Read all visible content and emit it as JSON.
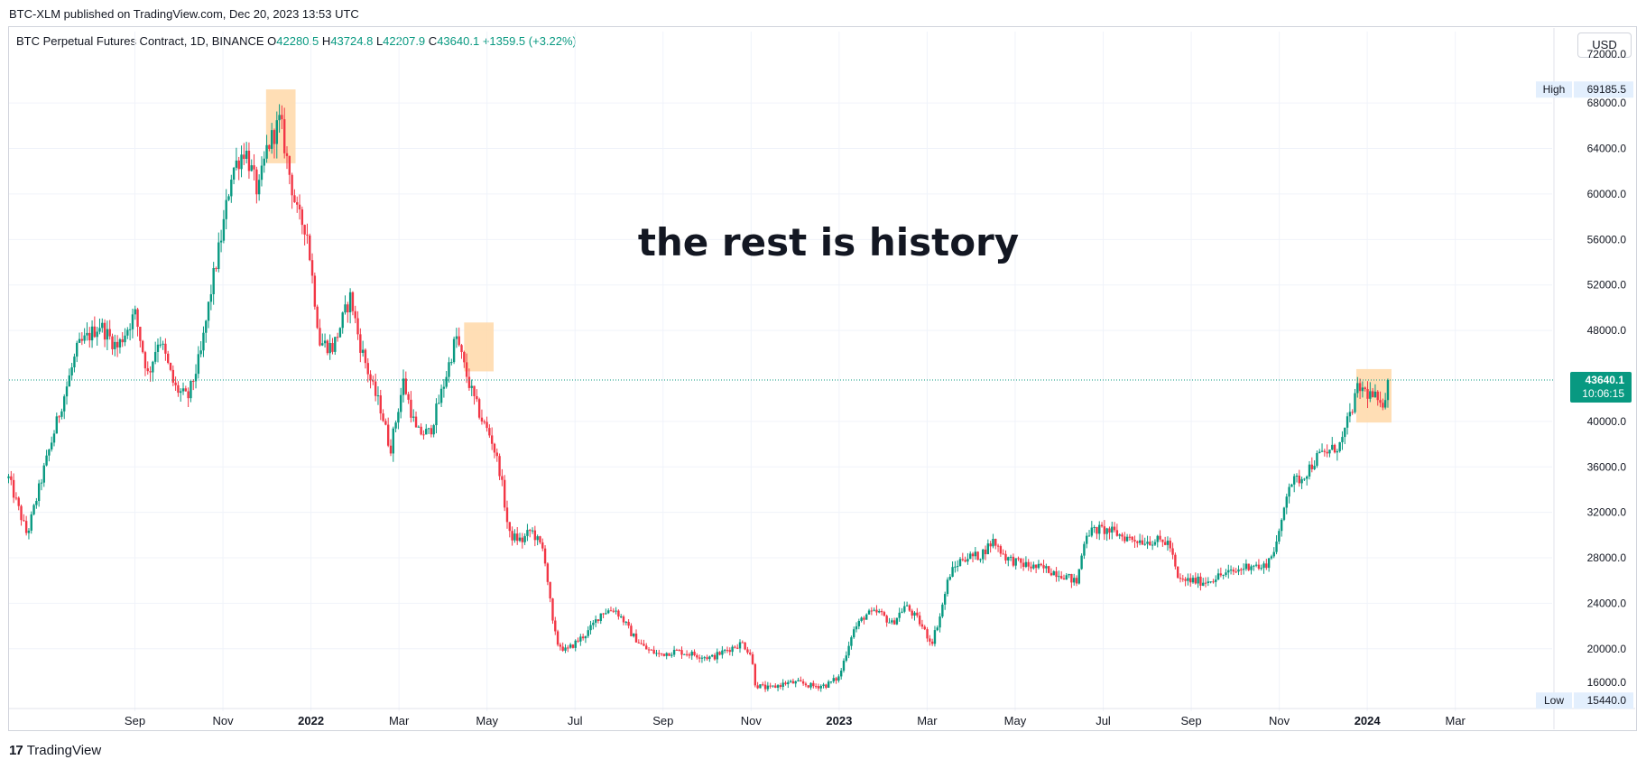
{
  "header": {
    "published_line": "BTC-XLM published on TradingView.com, Dec 20, 2023 13:53 UTC"
  },
  "legend": {
    "symbol": "BTC Perpetual Futures Contract, 1D, BINANCE",
    "open_label": "O",
    "open": "42280.5",
    "high_label": "H",
    "high": "43724.8",
    "low_label": "L",
    "low": "42207.9",
    "close_label": "C",
    "close": "43640.1",
    "change": "+1359.5 (+3.22%)"
  },
  "currency_button": "USD",
  "footer": {
    "brand": "TradingView",
    "mark": "17"
  },
  "colors": {
    "up": "#089981",
    "down": "#f23645",
    "grid": "#f0f3fa",
    "highlight": "#ffd8a8",
    "price_line": "#089981",
    "badge": "#e3effd"
  },
  "chart_data": {
    "type": "candlestick",
    "title": "the rest is history",
    "x_labels": [
      {
        "label": "Sep",
        "t": 1.0,
        "bold": false
      },
      {
        "label": "Nov",
        "t": 3.0,
        "bold": false
      },
      {
        "label": "2022",
        "t": 5.0,
        "bold": true
      },
      {
        "label": "Mar",
        "t": 7.0,
        "bold": false
      },
      {
        "label": "May",
        "t": 9.0,
        "bold": false
      },
      {
        "label": "Jul",
        "t": 11.0,
        "bold": false
      },
      {
        "label": "Sep",
        "t": 13.0,
        "bold": false
      },
      {
        "label": "Nov",
        "t": 15.0,
        "bold": false
      },
      {
        "label": "2023",
        "t": 17.0,
        "bold": true
      },
      {
        "label": "Mar",
        "t": 19.0,
        "bold": false
      },
      {
        "label": "May",
        "t": 21.0,
        "bold": false
      },
      {
        "label": "Jul",
        "t": 23.0,
        "bold": false
      },
      {
        "label": "Sep",
        "t": 25.0,
        "bold": false
      },
      {
        "label": "Nov",
        "t": 27.0,
        "bold": false
      },
      {
        "label": "2024",
        "t": 29.0,
        "bold": true
      },
      {
        "label": "Mar",
        "t": 31.0,
        "bold": false
      }
    ],
    "t_range": [
      -1.86,
      33.2
    ],
    "y_ticks": [
      "68000.0",
      "64000.0",
      "60000.0",
      "56000.0",
      "52000.0",
      "48000.0",
      "40000.0",
      "36000.0",
      "32000.0",
      "28000.0",
      "24000.0",
      "20000.0"
    ],
    "y_range": [
      15300,
      72300
    ],
    "anchors": [
      [
        -1.87,
        35000
      ],
      [
        -1.45,
        30000
      ],
      [
        -1.05,
        36000
      ],
      [
        -0.7,
        41000
      ],
      [
        -0.3,
        46500
      ],
      [
        0.2,
        48500
      ],
      [
        0.6,
        46500
      ],
      [
        1.0,
        49500
      ],
      [
        1.3,
        44000
      ],
      [
        1.55,
        47500
      ],
      [
        1.9,
        43000
      ],
      [
        2.2,
        42000
      ],
      [
        2.5,
        46000
      ],
      [
        2.75,
        52000
      ],
      [
        3.0,
        57000
      ],
      [
        3.2,
        62000
      ],
      [
        3.5,
        64000
      ],
      [
        3.8,
        60000
      ],
      [
        4.0,
        64000
      ],
      [
        4.3,
        66500
      ],
      [
        4.5,
        62000
      ],
      [
        4.7,
        58000
      ],
      [
        4.9,
        57000
      ],
      [
        5.2,
        47000
      ],
      [
        5.5,
        46500
      ],
      [
        5.9,
        51000
      ],
      [
        6.1,
        47000
      ],
      [
        6.4,
        43000
      ],
      [
        6.6,
        41000
      ],
      [
        6.8,
        37500
      ],
      [
        7.1,
        43500
      ],
      [
        7.4,
        39000
      ],
      [
        7.7,
        39000
      ],
      [
        8.0,
        43000
      ],
      [
        8.3,
        47500
      ],
      [
        8.5,
        44500
      ],
      [
        8.7,
        42000
      ],
      [
        8.9,
        40000
      ],
      [
        9.1,
        38500
      ],
      [
        9.3,
        35500
      ],
      [
        9.5,
        30000
      ],
      [
        9.8,
        29500
      ],
      [
        10.0,
        30500
      ],
      [
        10.3,
        28500
      ],
      [
        10.5,
        22000
      ],
      [
        10.6,
        20500
      ],
      [
        10.8,
        19800
      ],
      [
        11.0,
        20500
      ],
      [
        11.3,
        21500
      ],
      [
        11.6,
        23200
      ],
      [
        11.9,
        23500
      ],
      [
        12.1,
        22500
      ],
      [
        12.3,
        21200
      ],
      [
        12.6,
        20000
      ],
      [
        12.9,
        19500
      ],
      [
        13.3,
        19800
      ],
      [
        13.7,
        19500
      ],
      [
        14.1,
        19200
      ],
      [
        14.5,
        20000
      ],
      [
        14.8,
        20500
      ],
      [
        15.0,
        19500
      ],
      [
        15.1,
        16800
      ],
      [
        15.4,
        16500
      ],
      [
        15.8,
        17000
      ],
      [
        16.1,
        17000
      ],
      [
        16.4,
        16700
      ],
      [
        16.7,
        16800
      ],
      [
        17.0,
        17500
      ],
      [
        17.3,
        21500
      ],
      [
        17.6,
        23000
      ],
      [
        17.9,
        23200
      ],
      [
        18.2,
        22200
      ],
      [
        18.5,
        23800
      ],
      [
        18.8,
        22500
      ],
      [
        19.1,
        20500
      ],
      [
        19.3,
        23000
      ],
      [
        19.5,
        26500
      ],
      [
        19.8,
        28000
      ],
      [
        20.2,
        28200
      ],
      [
        20.5,
        29500
      ],
      [
        20.8,
        28000
      ],
      [
        21.1,
        27500
      ],
      [
        21.4,
        27200
      ],
      [
        21.7,
        27000
      ],
      [
        22.1,
        26500
      ],
      [
        22.4,
        25800
      ],
      [
        22.6,
        30200
      ],
      [
        22.9,
        30500
      ],
      [
        23.2,
        30300
      ],
      [
        23.5,
        29800
      ],
      [
        23.9,
        29500
      ],
      [
        24.2,
        29500
      ],
      [
        24.5,
        29300
      ],
      [
        24.7,
        26000
      ],
      [
        25.0,
        26000
      ],
      [
        25.3,
        25900
      ],
      [
        25.7,
        26500
      ],
      [
        26.0,
        26800
      ],
      [
        26.4,
        27500
      ],
      [
        26.6,
        27000
      ],
      [
        26.8,
        28000
      ],
      [
        27.0,
        30000
      ],
      [
        27.2,
        34500
      ],
      [
        27.5,
        35000
      ],
      [
        27.9,
        37000
      ],
      [
        28.2,
        37500
      ],
      [
        28.4,
        38000
      ],
      [
        28.6,
        40500
      ],
      [
        28.8,
        43000
      ],
      [
        29.0,
        42500
      ],
      [
        29.2,
        42000
      ],
      [
        29.3,
        41000
      ],
      [
        29.5,
        43640
      ]
    ],
    "highlights": [
      {
        "t0": 3.98,
        "t1": 4.65,
        "y0": 62700,
        "y1": 69200
      },
      {
        "t0": 8.48,
        "t1": 9.15,
        "y0": 44400,
        "y1": 48700
      },
      {
        "t0": 28.75,
        "t1": 29.55,
        "y0": 39900,
        "y1": 44600
      }
    ],
    "last_price": {
      "value": 43640.1,
      "label": "43640.1",
      "countdown": "10:06:15"
    },
    "high_marker": {
      "label": "High",
      "value": "69185.5",
      "v": 69185.5
    },
    "low_marker": {
      "label": "Low",
      "value": "15440.0",
      "v": 15440
    },
    "clipped_top_label": "72000.0",
    "clipped_bottom_label": "16000.0"
  }
}
